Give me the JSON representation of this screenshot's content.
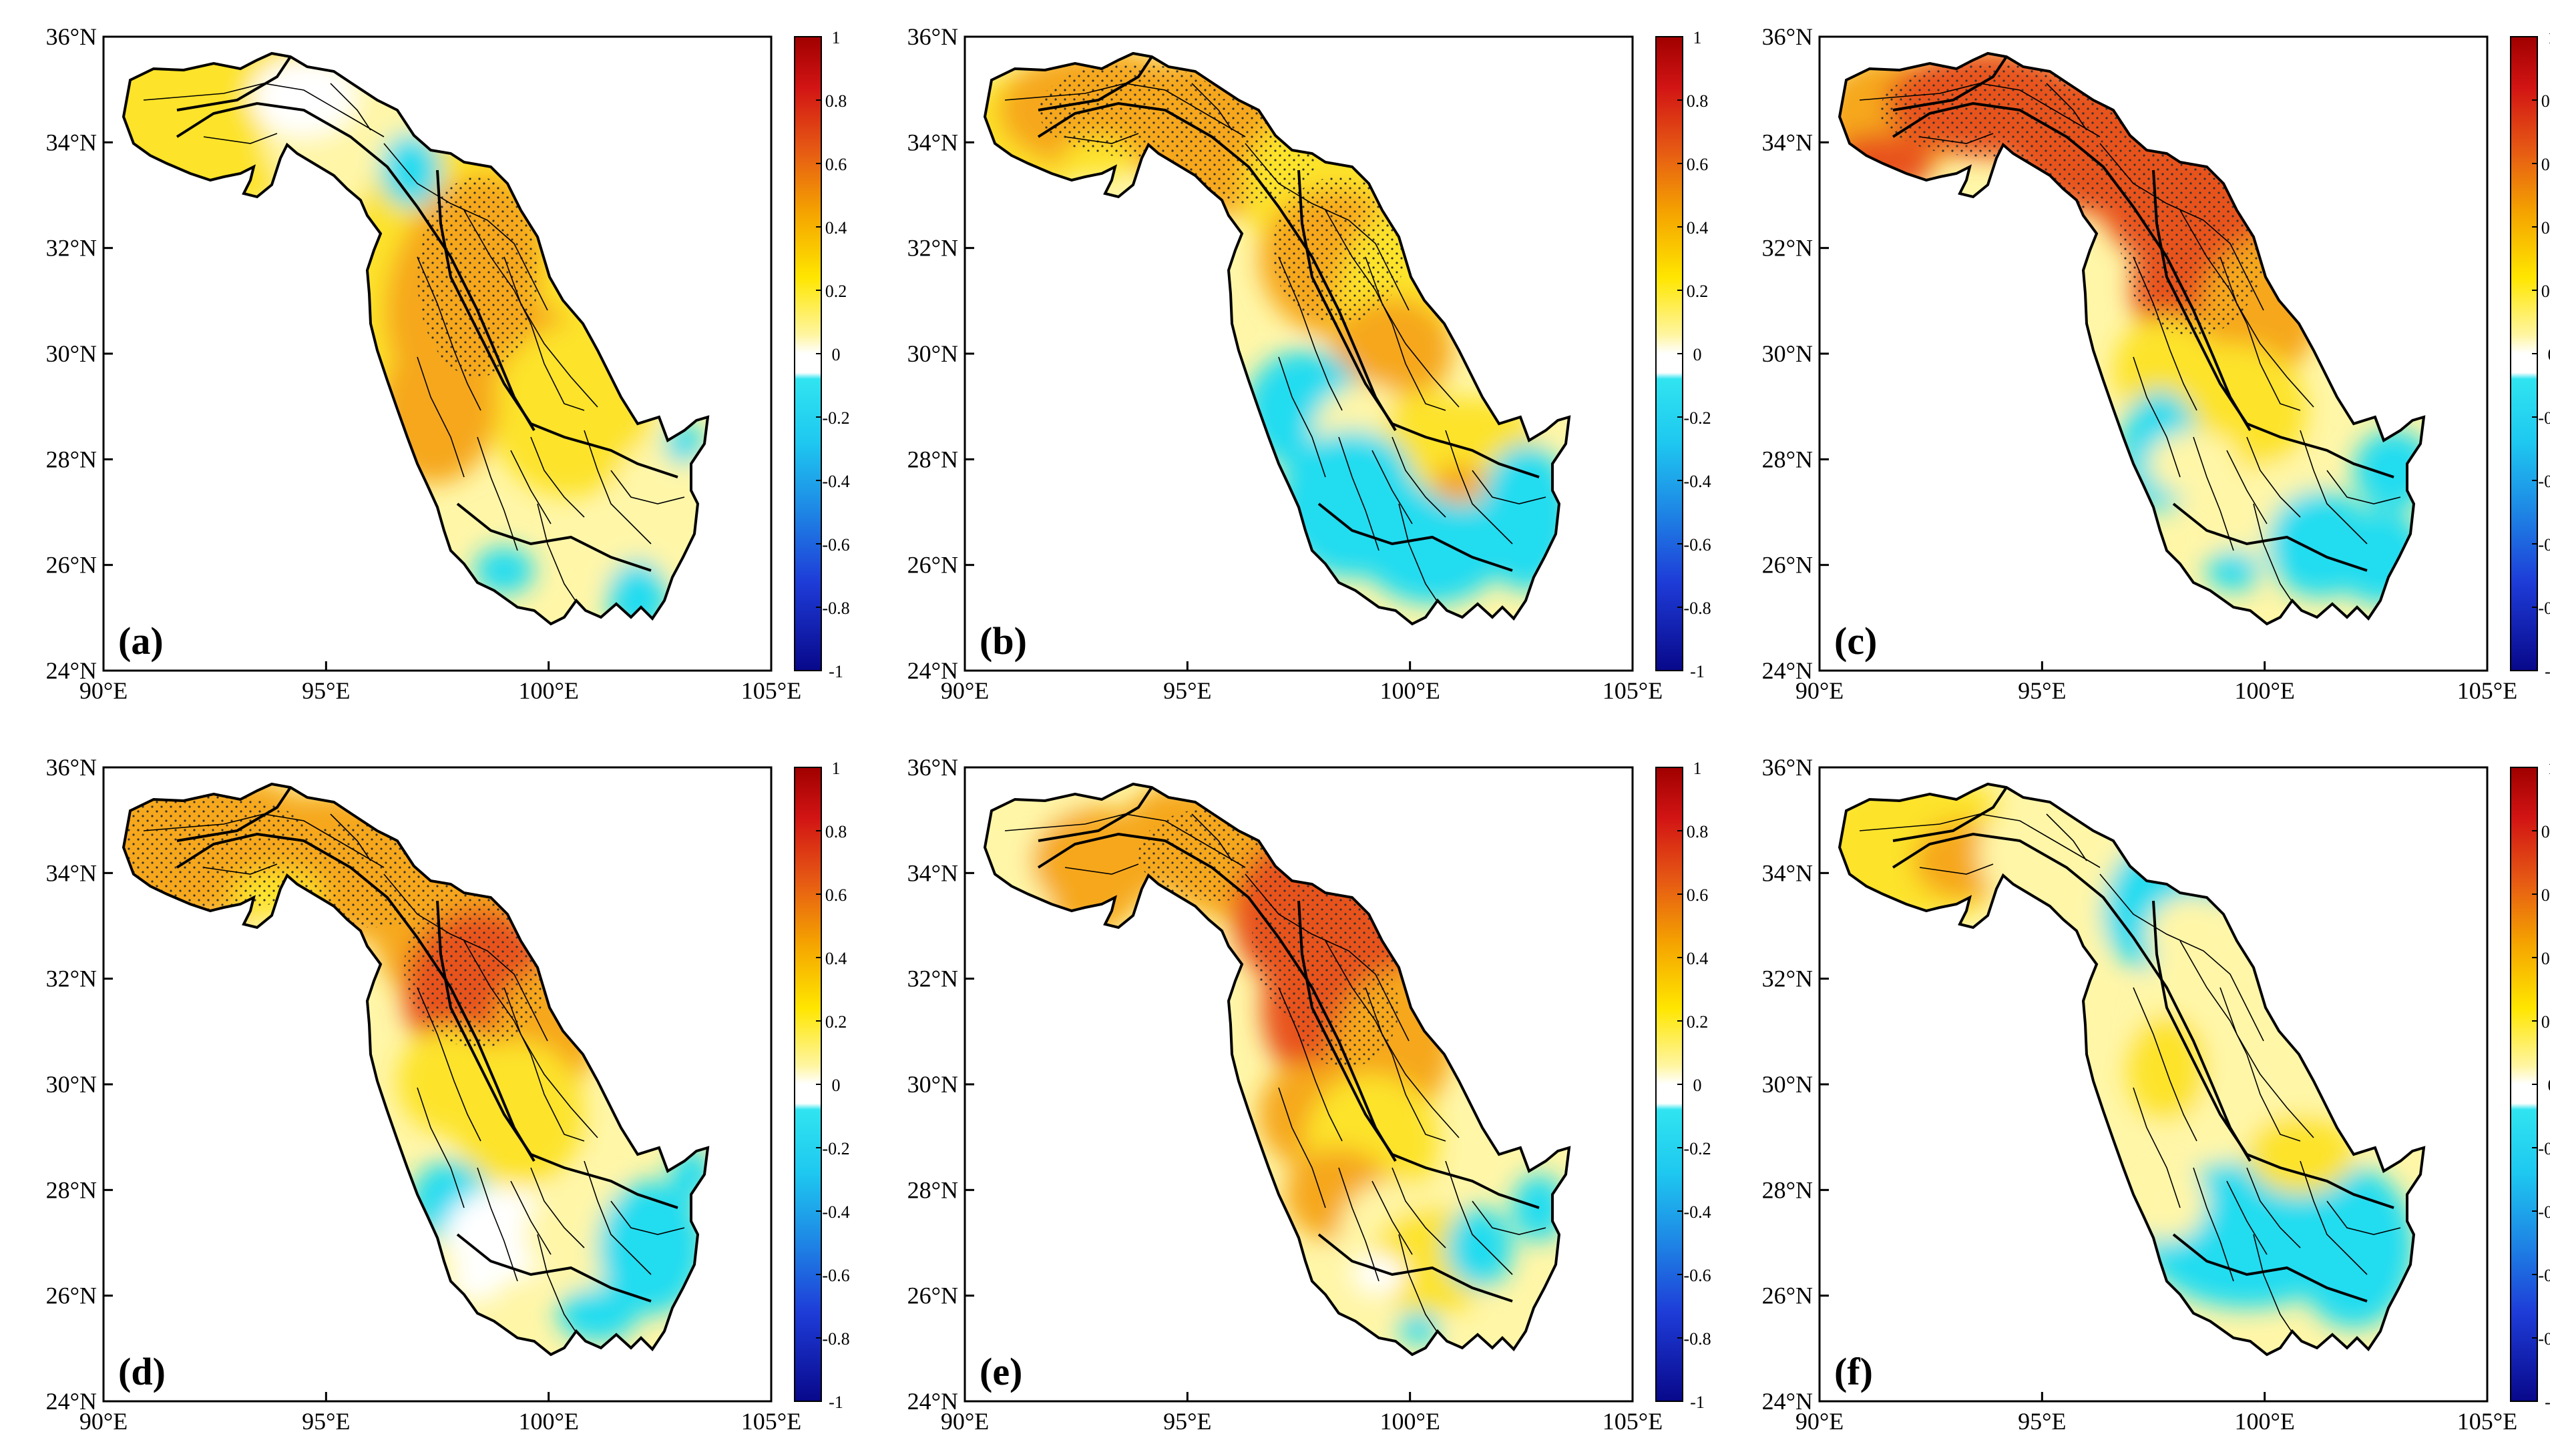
{
  "figure": {
    "rows": 2,
    "cols": 3,
    "panel_labels": [
      "(a)",
      "(b)",
      "(c)",
      "(d)",
      "(e)",
      "(f)"
    ],
    "lon_ticks": [
      "90°E",
      "95°E",
      "100°E",
      "105°E"
    ],
    "lat_ticks": [
      "36°N",
      "34°N",
      "32°N",
      "30°N",
      "28°N",
      "26°N",
      "24°N"
    ],
    "lon_range": [
      90,
      105
    ],
    "lat_range": [
      24,
      36
    ],
    "colorbar": {
      "ticks": [
        "1",
        "0.8",
        "0.6",
        "0.4",
        "0.2",
        "0",
        "-0.2",
        "-0.4",
        "-0.6",
        "-0.8",
        "-1"
      ],
      "range": [
        -1,
        1
      ],
      "colors": [
        "#08088a",
        "#1e3cd8",
        "#1e8ce6",
        "#1ec8f0",
        "#30e4f0",
        "#ffffff",
        "#fff5a0",
        "#ffe600",
        "#f5a500",
        "#e65a14",
        "#a00000"
      ]
    },
    "palette": {
      "white": "#ffffff",
      "light_yellow": "#fff6a8",
      "yellow": "#fde32b",
      "orange": "#f6a71c",
      "red_orange": "#e8521a",
      "cyan": "#22dcf0",
      "boundary": "#000000"
    }
  }
}
